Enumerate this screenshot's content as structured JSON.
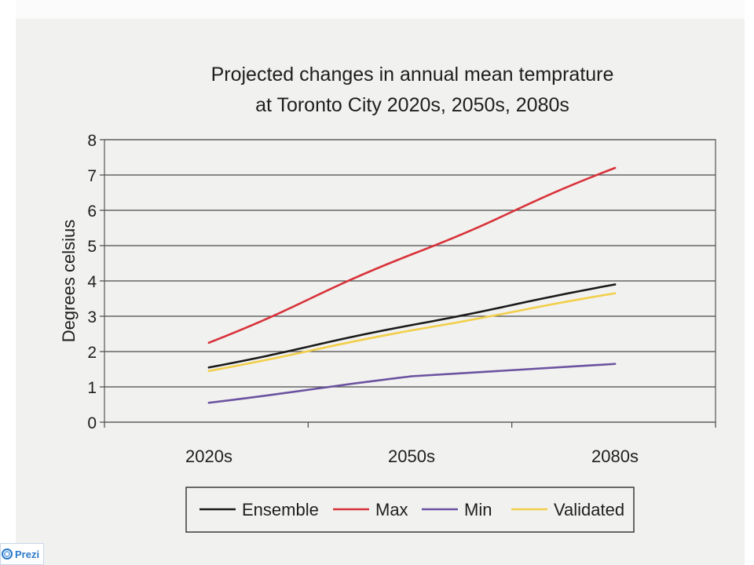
{
  "chart_data": {
    "type": "line",
    "title": [
      "Projected changes in annual mean temprature",
      "at Toronto City 2020s, 2050s, 2080s"
    ],
    "xlabel": "",
    "ylabel": "Degrees celsius",
    "categories": [
      "2020s",
      "2050s",
      "2080s"
    ],
    "ylim": [
      0,
      8
    ],
    "yticks": [
      "0",
      "1",
      "2",
      "3",
      "4",
      "5",
      "6",
      "7",
      "8"
    ],
    "grid": true,
    "legend_position": "bottom",
    "series": [
      {
        "name": "Ensemble",
        "color": "#1a1a1a",
        "values": [
          1.55,
          2.75,
          3.9
        ]
      },
      {
        "name": "Max",
        "color": "#d8333a",
        "values": [
          2.25,
          4.75,
          7.2
        ]
      },
      {
        "name": "Min",
        "color": "#6a52a0",
        "values": [
          0.55,
          1.3,
          1.65
        ]
      },
      {
        "name": "Validated",
        "color": "#f2cf4a",
        "values": [
          1.45,
          2.6,
          3.65
        ]
      }
    ]
  },
  "footer": {
    "brand_label": "Prezi",
    "brand_icon": "prezi-logo-icon"
  }
}
